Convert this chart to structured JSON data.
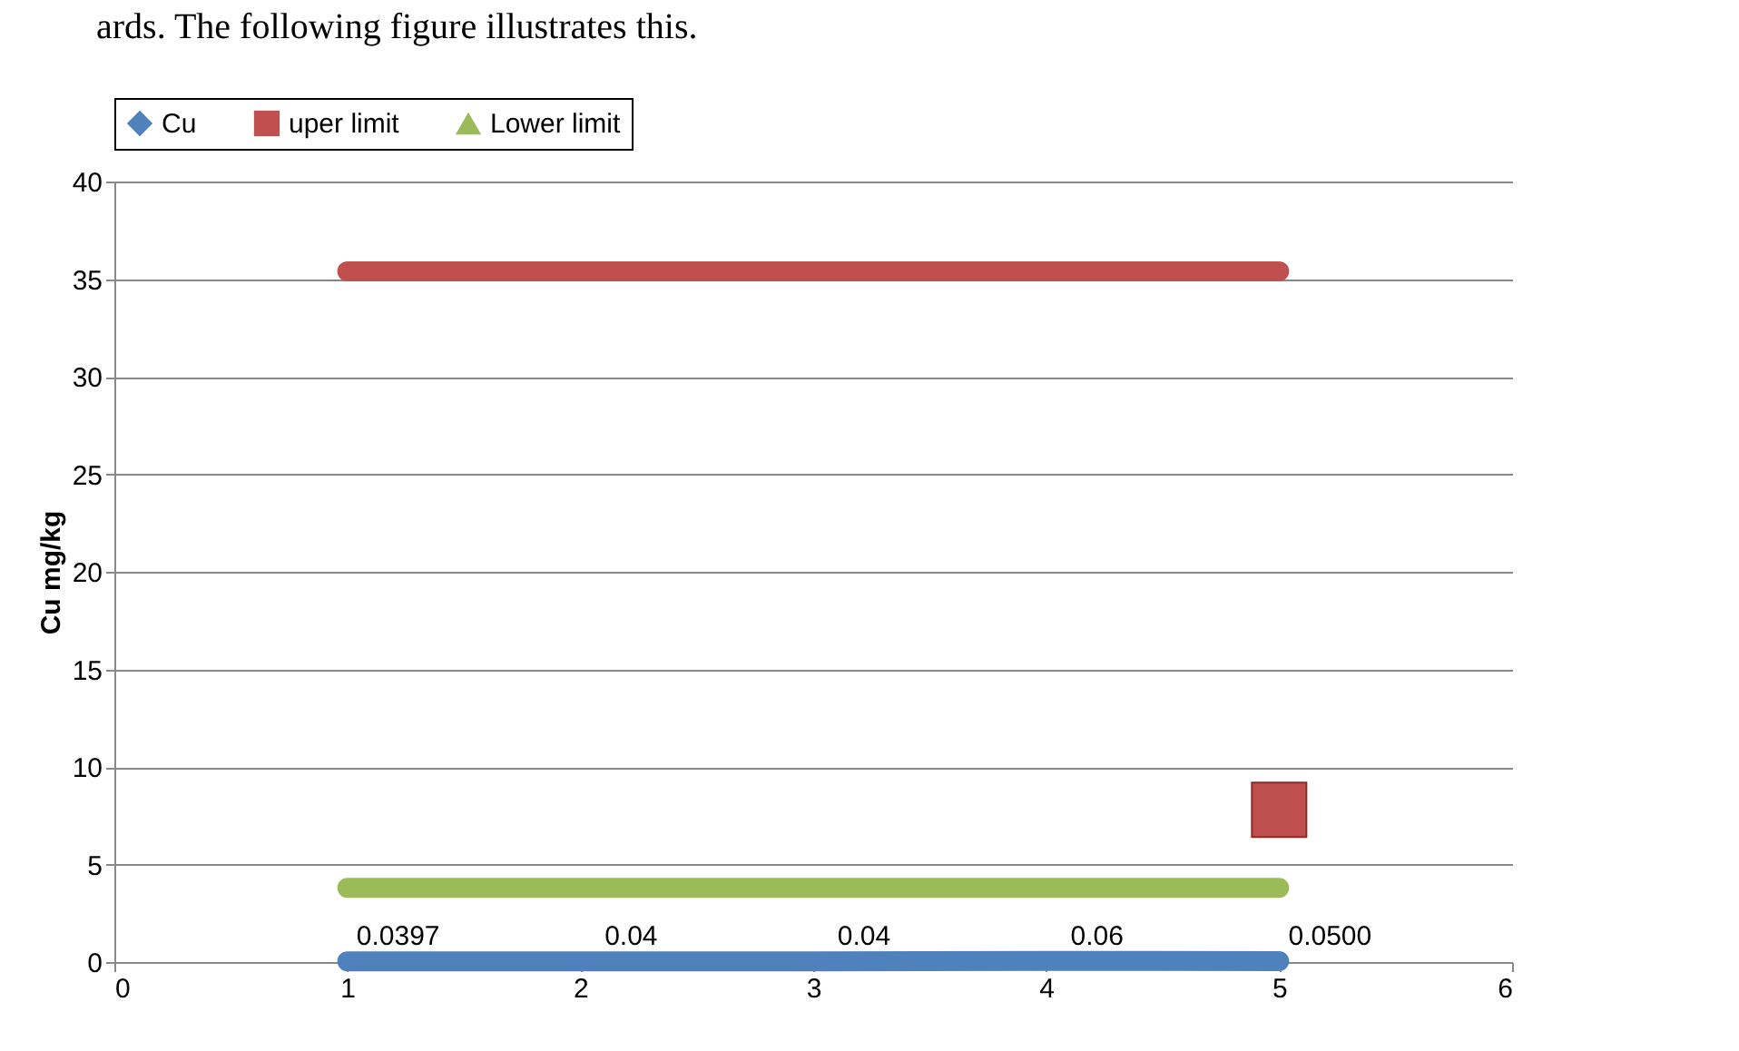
{
  "chart_data": {
    "type": "line",
    "ylabel": "Cu mg/kg",
    "annotations": [
      "ards. The following figure illustrates this."
    ],
    "x": [
      1,
      2,
      3,
      4,
      5
    ],
    "series": [
      {
        "name": "Cu",
        "color": "#4f81bd",
        "marker": "diamond",
        "values": [
          0.0397,
          0.04,
          0.04,
          0.06,
          0.05
        ],
        "value_labels": [
          "0.0397",
          "0.04",
          "0.04",
          "0.06",
          "0.0500"
        ]
      },
      {
        "name": "uper limit",
        "color": "#c0504d",
        "marker": "square",
        "values": [
          35.4,
          35.4,
          35.4,
          35.4,
          35.4
        ]
      },
      {
        "name": "Lower limit",
        "color": "#9bbb59",
        "marker": "triangle",
        "values": [
          3.8,
          3.8,
          3.8,
          3.8,
          3.8
        ]
      },
      {
        "type": "scatter",
        "color": "#c0504d",
        "marker": "square",
        "x": [
          5
        ],
        "values": [
          7.8
        ]
      }
    ],
    "xlim": [
      0,
      6
    ],
    "xticks": [
      0,
      1,
      2,
      3,
      4,
      5,
      6
    ],
    "ylim": [
      0,
      40
    ],
    "yticks": [
      0,
      5,
      10,
      15,
      20,
      25,
      30,
      35,
      40
    ],
    "grid": "y",
    "legend": "top"
  }
}
